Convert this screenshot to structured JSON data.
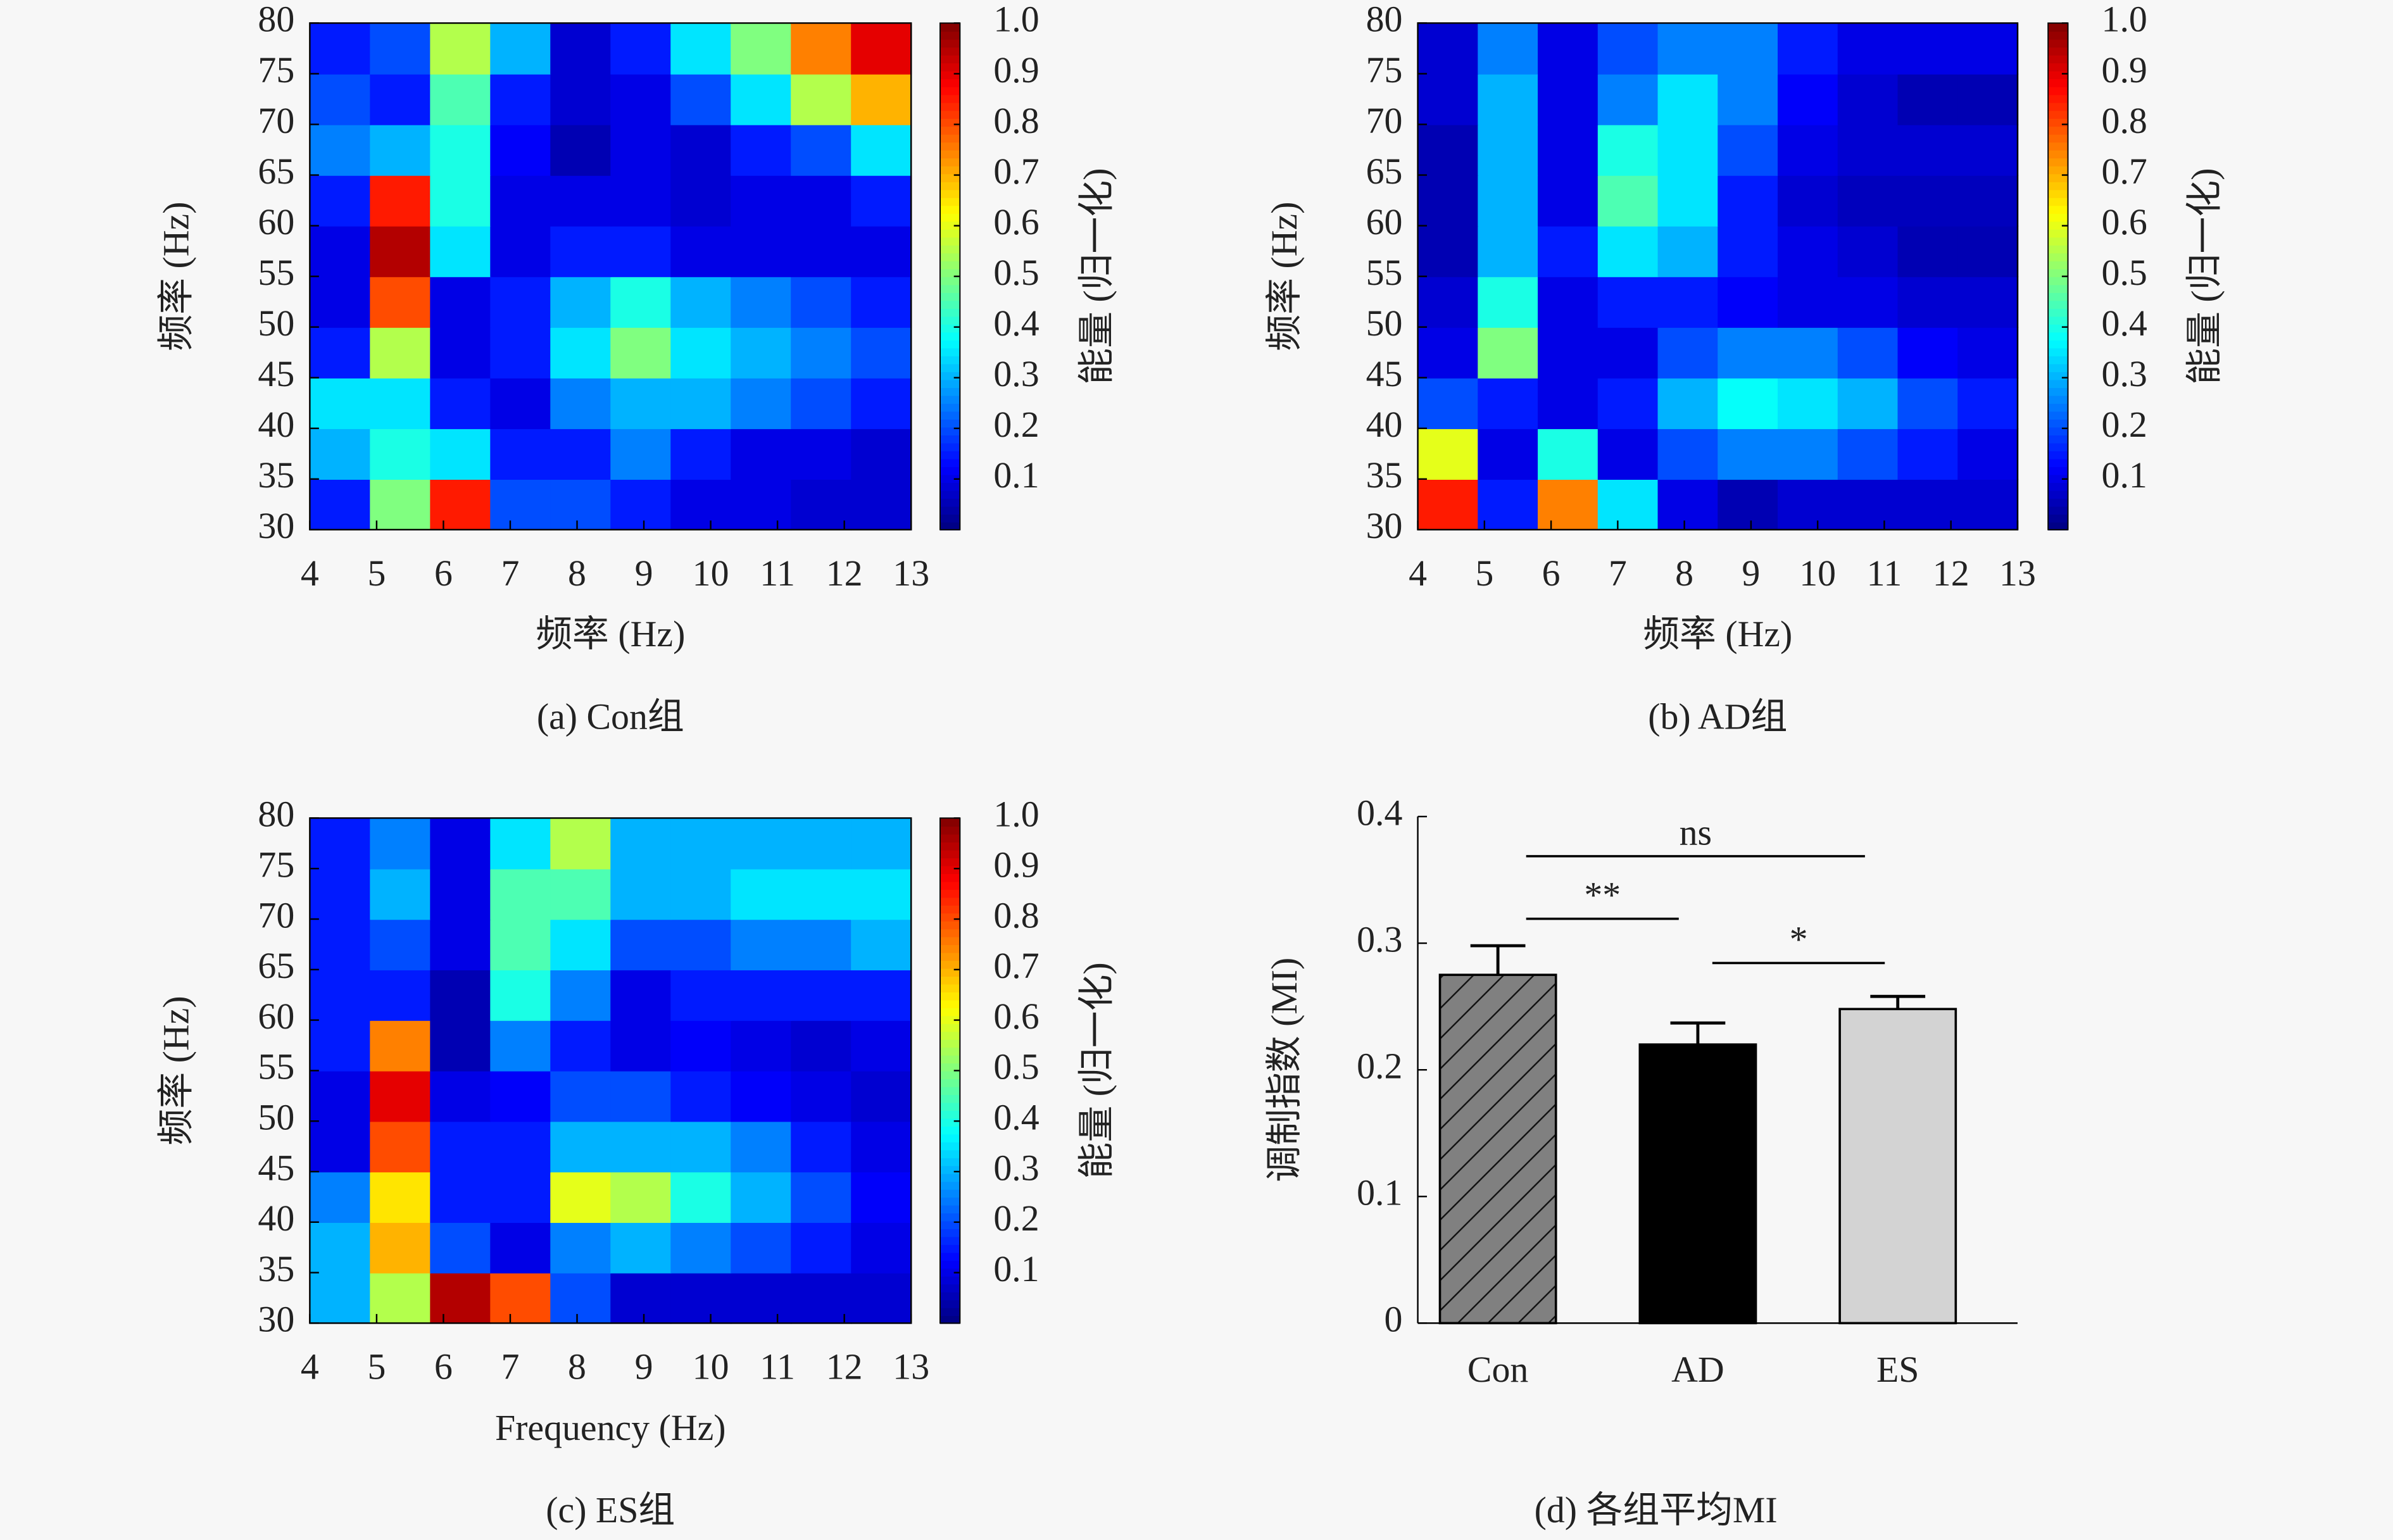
{
  "chart_data": [
    {
      "type": "heatmap",
      "caption": "(a) Con组",
      "xlabel": "频率 (Hz)",
      "ylabel": "频率 (Hz)",
      "colorbar_label": "能量 (归一化)",
      "xlim": [
        4,
        13
      ],
      "ylim": [
        30,
        80
      ],
      "xticks": [
        4,
        5,
        6,
        7,
        8,
        9,
        10,
        11,
        12,
        13
      ],
      "yticks": [
        30,
        35,
        40,
        45,
        50,
        55,
        60,
        65,
        70,
        75,
        80
      ],
      "zlim": [
        0,
        1
      ],
      "zticks": [
        0.1,
        0.2,
        0.3,
        0.4,
        0.5,
        0.6,
        0.7,
        0.8,
        0.9,
        {
          "value": 1,
          "label": "1.0"
        }
      ],
      "z": [
        [
          0.15,
          0.5,
          0.85,
          0.2,
          0.2,
          0.15,
          0.1,
          0.1,
          0.08,
          0.08
        ],
        [
          0.3,
          0.4,
          0.35,
          0.15,
          0.15,
          0.25,
          0.15,
          0.1,
          0.1,
          0.08
        ],
        [
          0.35,
          0.35,
          0.15,
          0.1,
          0.25,
          0.3,
          0.3,
          0.25,
          0.2,
          0.15
        ],
        [
          0.15,
          0.55,
          0.1,
          0.15,
          0.35,
          0.5,
          0.35,
          0.3,
          0.25,
          0.2
        ],
        [
          0.1,
          0.8,
          0.1,
          0.15,
          0.3,
          0.4,
          0.3,
          0.25,
          0.2,
          0.15
        ],
        [
          0.1,
          0.95,
          0.35,
          0.1,
          0.15,
          0.15,
          0.1,
          0.1,
          0.1,
          0.1
        ],
        [
          0.15,
          0.85,
          0.4,
          0.1,
          0.1,
          0.1,
          0.08,
          0.1,
          0.1,
          0.15
        ],
        [
          0.25,
          0.3,
          0.4,
          0.12,
          0.05,
          0.1,
          0.08,
          0.15,
          0.2,
          0.35
        ],
        [
          0.2,
          0.15,
          0.45,
          0.15,
          0.08,
          0.1,
          0.2,
          0.35,
          0.55,
          0.7
        ],
        [
          0.15,
          0.2,
          0.55,
          0.3,
          0.08,
          0.15,
          0.35,
          0.5,
          0.75,
          0.9
        ]
      ]
    },
    {
      "type": "heatmap",
      "caption": "(b) AD组",
      "xlabel": "频率 (Hz)",
      "ylabel": "频率 (Hz)",
      "colorbar_label": "能量 (归一化)",
      "xlim": [
        4,
        13
      ],
      "ylim": [
        30,
        80
      ],
      "xticks": [
        4,
        5,
        6,
        7,
        8,
        9,
        10,
        11,
        12,
        13
      ],
      "yticks": [
        30,
        35,
        40,
        45,
        50,
        55,
        60,
        65,
        70,
        75,
        80
      ],
      "zlim": [
        0,
        1
      ],
      "zticks": [
        0.1,
        0.2,
        0.3,
        0.4,
        0.5,
        0.6,
        0.7,
        0.8,
        0.9,
        {
          "value": 1,
          "label": "1.0"
        }
      ],
      "z": [
        [
          0.85,
          0.15,
          0.75,
          0.35,
          0.1,
          0.05,
          0.08,
          0.08,
          0.08,
          0.08
        ],
        [
          0.6,
          0.1,
          0.4,
          0.1,
          0.2,
          0.25,
          0.25,
          0.2,
          0.15,
          0.1
        ],
        [
          0.2,
          0.15,
          0.1,
          0.15,
          0.3,
          0.38,
          0.35,
          0.3,
          0.2,
          0.15
        ],
        [
          0.1,
          0.5,
          0.1,
          0.1,
          0.2,
          0.25,
          0.25,
          0.2,
          0.12,
          0.1
        ],
        [
          0.08,
          0.4,
          0.1,
          0.15,
          0.15,
          0.12,
          0.1,
          0.1,
          0.08,
          0.08
        ],
        [
          0.05,
          0.3,
          0.15,
          0.35,
          0.3,
          0.15,
          0.1,
          0.08,
          0.05,
          0.05
        ],
        [
          0.05,
          0.3,
          0.1,
          0.45,
          0.35,
          0.15,
          0.08,
          0.06,
          0.06,
          0.06
        ],
        [
          0.05,
          0.3,
          0.1,
          0.4,
          0.35,
          0.2,
          0.1,
          0.08,
          0.08,
          0.08
        ],
        [
          0.08,
          0.3,
          0.1,
          0.25,
          0.35,
          0.25,
          0.12,
          0.08,
          0.05,
          0.05
        ],
        [
          0.08,
          0.25,
          0.1,
          0.2,
          0.25,
          0.25,
          0.15,
          0.1,
          0.1,
          0.1
        ]
      ]
    },
    {
      "type": "heatmap",
      "caption": "(c) ES组",
      "xlabel": "Frequency (Hz)",
      "ylabel": "频率 (Hz)",
      "colorbar_label": "能量 (归一化)",
      "xlim": [
        4,
        13
      ],
      "ylim": [
        30,
        80
      ],
      "xticks": [
        4,
        5,
        6,
        7,
        8,
        9,
        10,
        11,
        12,
        13
      ],
      "yticks": [
        30,
        35,
        40,
        45,
        50,
        55,
        60,
        65,
        70,
        75,
        80
      ],
      "zlim": [
        0,
        1
      ],
      "zticks": [
        0.1,
        0.2,
        0.3,
        0.4,
        0.5,
        0.6,
        0.7,
        0.8,
        0.9,
        {
          "value": 1,
          "label": "1.0"
        }
      ],
      "z": [
        [
          0.3,
          0.55,
          0.95,
          0.8,
          0.2,
          0.08,
          0.08,
          0.08,
          0.08,
          0.08
        ],
        [
          0.3,
          0.7,
          0.2,
          0.1,
          0.25,
          0.3,
          0.25,
          0.2,
          0.15,
          0.1
        ],
        [
          0.25,
          0.65,
          0.15,
          0.15,
          0.6,
          0.55,
          0.4,
          0.3,
          0.2,
          0.12
        ],
        [
          0.1,
          0.8,
          0.15,
          0.15,
          0.3,
          0.3,
          0.3,
          0.25,
          0.15,
          0.1
        ],
        [
          0.1,
          0.9,
          0.1,
          0.12,
          0.2,
          0.2,
          0.15,
          0.12,
          0.1,
          0.08
        ],
        [
          0.15,
          0.75,
          0.05,
          0.25,
          0.15,
          0.1,
          0.12,
          0.1,
          0.08,
          0.1
        ],
        [
          0.15,
          0.15,
          0.05,
          0.4,
          0.25,
          0.1,
          0.15,
          0.15,
          0.15,
          0.15
        ],
        [
          0.15,
          0.2,
          0.1,
          0.45,
          0.35,
          0.2,
          0.2,
          0.25,
          0.25,
          0.3
        ],
        [
          0.15,
          0.3,
          0.1,
          0.45,
          0.45,
          0.3,
          0.3,
          0.35,
          0.35,
          0.35
        ],
        [
          0.15,
          0.25,
          0.1,
          0.35,
          0.55,
          0.3,
          0.3,
          0.3,
          0.3,
          0.3
        ]
      ]
    },
    {
      "type": "bar",
      "caption": "(d) 各组平均MI",
      "ylabel": "调制指数 (MI)",
      "categories": [
        "Con",
        "AD",
        "ES"
      ],
      "values": [
        0.275,
        0.22,
        0.248
      ],
      "errors": [
        0.023,
        0.017,
        0.01
      ],
      "colors": [
        "#808080",
        "#000000",
        "#d3d3d3"
      ],
      "hatch": [
        true,
        false,
        false
      ],
      "ylim": [
        0,
        0.4
      ],
      "yticks": [
        0,
        0.1,
        0.2,
        0.3,
        0.4
      ],
      "annotations": [
        "ns",
        "**",
        "*"
      ]
    }
  ]
}
